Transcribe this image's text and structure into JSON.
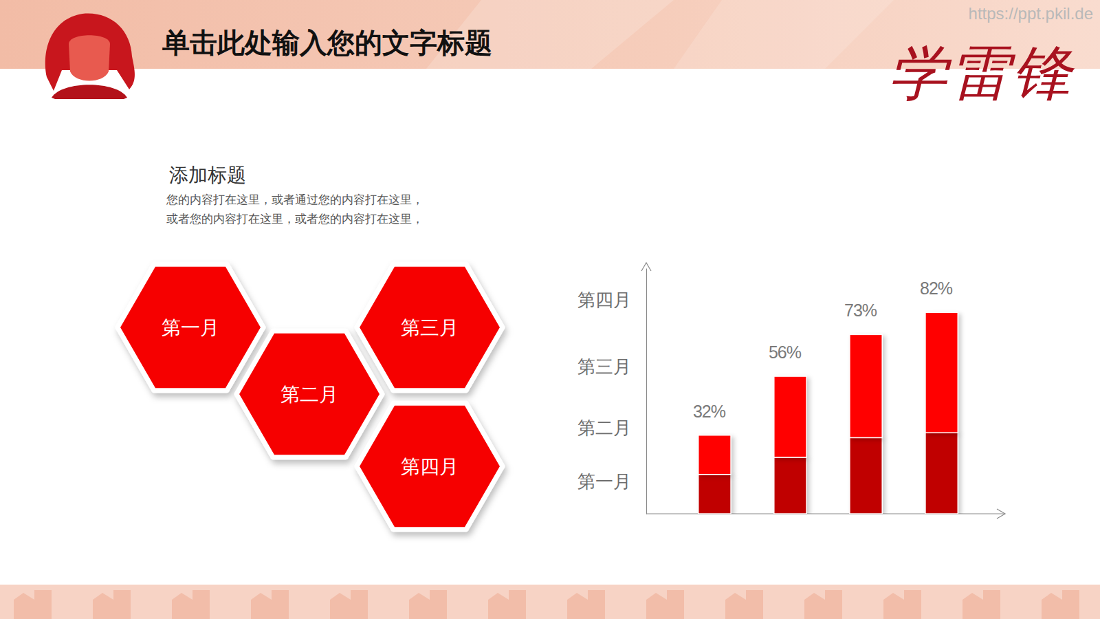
{
  "header": {
    "title": "单击此处输入您的文字标题",
    "watermark": "https://ppt.pkil.de",
    "brand": "学雷锋"
  },
  "section": {
    "title": "添加标题",
    "lines": [
      "您的内容打在这里，或者通过您的内容打在这里，",
      "或者您的内容打在这里，或者您的内容打在这里，"
    ]
  },
  "hexagons": [
    "第一月",
    "第二月",
    "第三月",
    "第四月"
  ],
  "chart_data": {
    "type": "bar",
    "stacked": true,
    "data_labels": true,
    "grid": false,
    "tick_labels": "y",
    "categories": [
      null,
      null,
      null,
      null
    ],
    "series": [
      {
        "color": "#c00000",
        "values": [
          16,
          23,
          31,
          33
        ]
      },
      {
        "color": "#ff0000",
        "values": [
          16,
          33,
          42,
          49
        ]
      }
    ],
    "totals": [
      32,
      56,
      73,
      82
    ],
    "total_labels": [
      "32%",
      "56%",
      "73%",
      "82%"
    ],
    "ylim": [
      0,
      100
    ],
    "yticks": [
      {
        "value": 13,
        "label": "第一月"
      },
      {
        "value": 35,
        "label": "第二月"
      },
      {
        "value": 60,
        "label": "第三月"
      },
      {
        "value": 87,
        "label": "第四月"
      }
    ]
  }
}
